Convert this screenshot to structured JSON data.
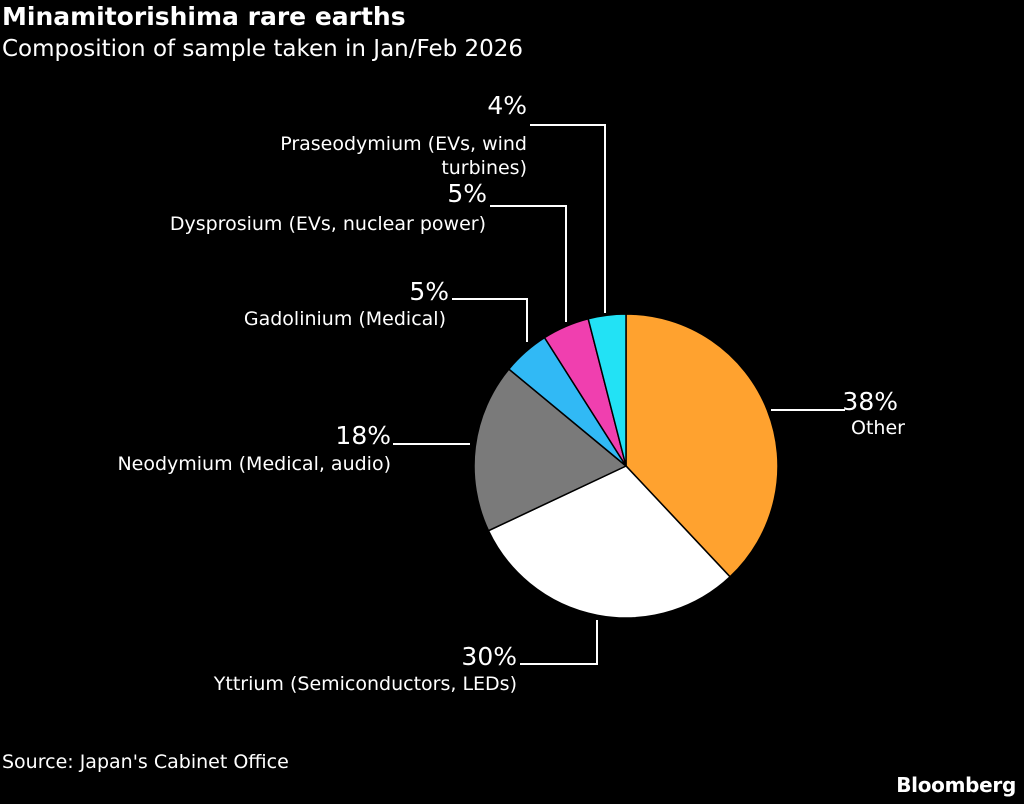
{
  "title": "Minamitorishima rare earths",
  "subtitle": "Composition of sample taken in Jan/Feb 2026",
  "source": "Source: Japan's Cabinet Office",
  "brand": "Bloomberg",
  "chart_data": {
    "type": "pie",
    "start_angle_deg": 0,
    "direction": "clockwise",
    "slices": [
      {
        "label": "Other",
        "pct_label": "38%",
        "value": 38,
        "color": "#FFA22F"
      },
      {
        "label": "Yttrium (Semiconductors, LEDs)",
        "pct_label": "30%",
        "value": 30,
        "color": "#FFFFFF"
      },
      {
        "label": "Neodymium (Medical, audio)",
        "pct_label": "18%",
        "value": 18,
        "color": "#7A7A7A"
      },
      {
        "label": "Gadolinium (Medical)",
        "pct_label": "5%",
        "value": 5,
        "color": "#31B9F5"
      },
      {
        "label": "Dysprosium (EVs, nuclear power)",
        "pct_label": "5%",
        "value": 5,
        "color": "#F03FAF"
      },
      {
        "label": "Praseodymium (EVs, wind turbines)",
        "pct_label": "4%",
        "value": 4,
        "color": "#22E2F5"
      }
    ]
  }
}
